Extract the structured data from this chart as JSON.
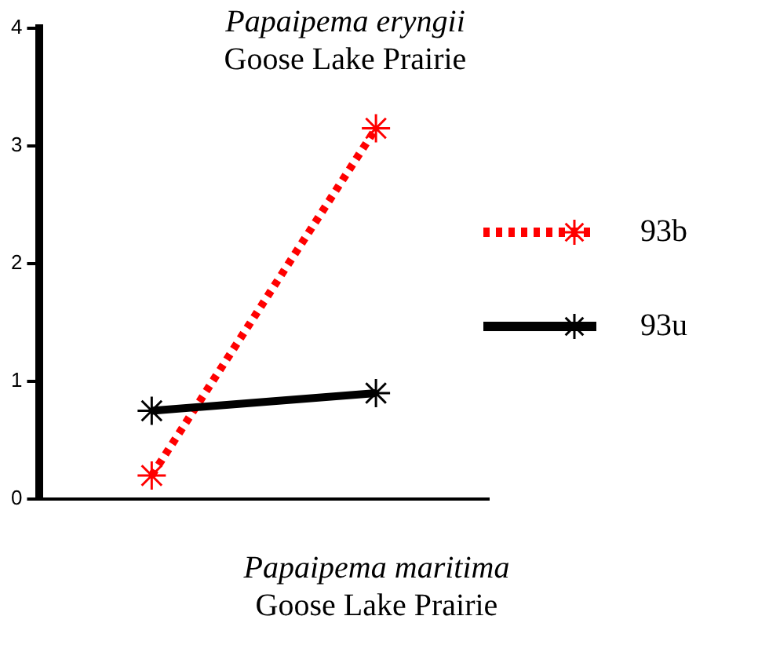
{
  "chart_data": {
    "type": "line",
    "title": "Papaipema eryngii\nGoose Lake Prairie",
    "xlabel": "Papaipema maritima\nGoose Lake Prairie",
    "categories": [
      null,
      null
    ],
    "series": [
      {
        "name": "93b",
        "color": "#ff0000",
        "values": [
          0.2,
          3.15
        ],
        "line_style": "dotted"
      },
      {
        "name": "93u",
        "color": "#010101",
        "values": [
          0.75,
          0.9
        ],
        "line_style": "solid"
      }
    ],
    "ylim": [
      0,
      4
    ],
    "yticks": [
      0,
      1,
      2,
      3,
      4
    ],
    "grid": false,
    "legend": "right",
    "marker": "cross"
  }
}
